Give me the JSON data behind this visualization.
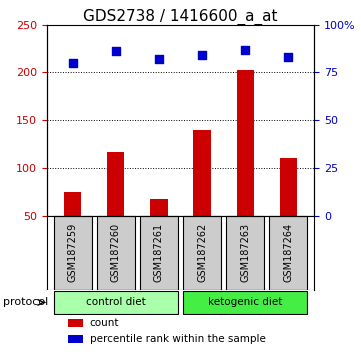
{
  "title": "GDS2738 / 1416600_a_at",
  "samples": [
    "GSM187259",
    "GSM187260",
    "GSM187261",
    "GSM187262",
    "GSM187263",
    "GSM187264"
  ],
  "bar_values": [
    75,
    117,
    67,
    140,
    203,
    110
  ],
  "percentile_values": [
    80,
    86,
    82,
    84,
    87,
    83
  ],
  "bar_color": "#cc0000",
  "percentile_color": "#0000cc",
  "ylim_left": [
    50,
    250
  ],
  "ylim_right": [
    0,
    100
  ],
  "left_ticks": [
    50,
    100,
    150,
    200,
    250
  ],
  "right_ticks": [
    0,
    25,
    50,
    75,
    100
  ],
  "right_tick_labels": [
    "0",
    "25",
    "50",
    "75",
    "100%"
  ],
  "gridline_values": [
    100,
    150,
    200
  ],
  "protocol_groups": [
    {
      "label": "control diet",
      "indices": [
        0,
        1,
        2
      ],
      "color": "#aaffaa"
    },
    {
      "label": "ketogenic diet",
      "indices": [
        3,
        4,
        5
      ],
      "color": "#44ee44"
    }
  ],
  "protocol_label": "protocol",
  "legend_items": [
    {
      "color": "#cc0000",
      "marker": "s",
      "label": "count"
    },
    {
      "color": "#0000cc",
      "marker": "s",
      "label": "percentile rank within the sample"
    }
  ],
  "label_box_color": "#cccccc",
  "bar_width": 0.4,
  "title_fontsize": 11,
  "tick_fontsize": 8,
  "bg_color": "#ffffff"
}
